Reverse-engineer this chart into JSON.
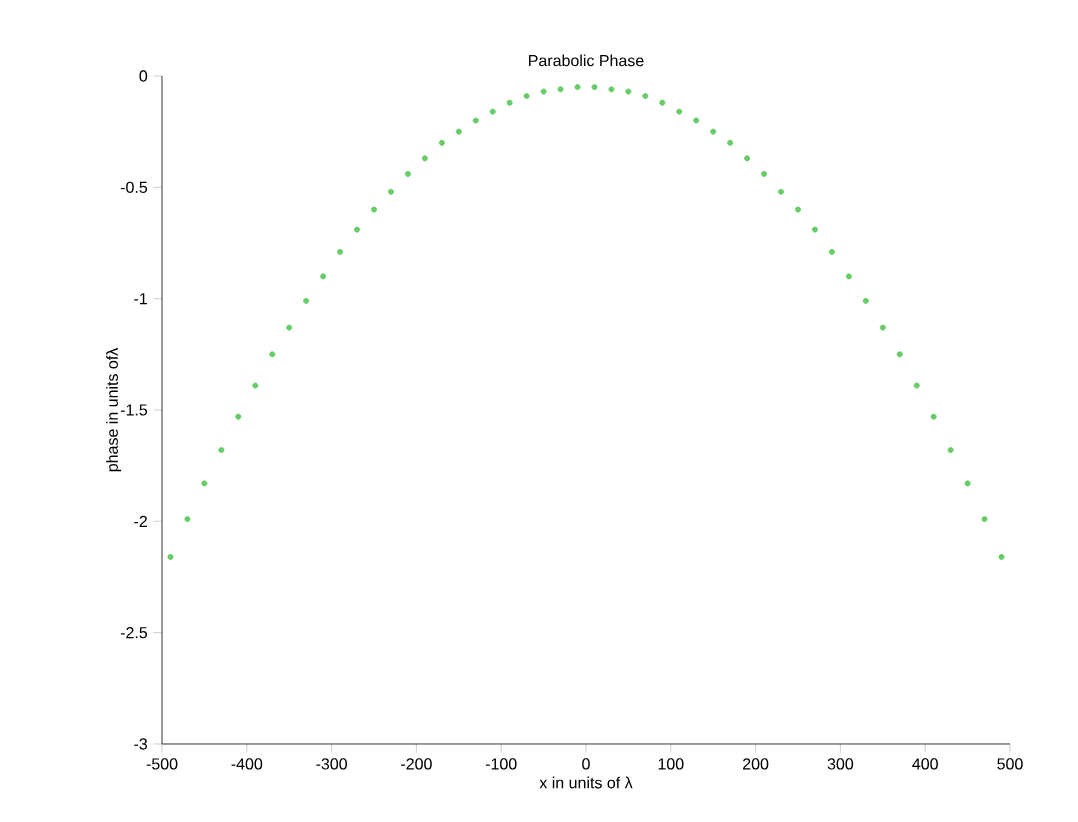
{
  "chart_data": {
    "type": "scatter",
    "title": "Parabolic Phase",
    "xlabel": "x in units of λ",
    "ylabel": "phase in units ofλ",
    "x": [
      -490,
      -470,
      -450,
      -430,
      -410,
      -390,
      -370,
      -350,
      -330,
      -310,
      -290,
      -270,
      -250,
      -230,
      -210,
      -190,
      -170,
      -150,
      -130,
      -110,
      -90,
      -70,
      -50,
      -30,
      -10,
      10,
      30,
      50,
      70,
      90,
      110,
      130,
      150,
      170,
      190,
      210,
      230,
      250,
      270,
      290,
      310,
      330,
      350,
      370,
      390,
      410,
      430,
      450,
      470,
      490
    ],
    "values": [
      -2.16,
      -1.99,
      -1.83,
      -1.68,
      -1.53,
      -1.39,
      -1.25,
      -1.13,
      -1.01,
      -0.9,
      -0.79,
      -0.69,
      -0.6,
      -0.52,
      -0.44,
      -0.37,
      -0.3,
      -0.25,
      -0.2,
      -0.16,
      -0.12,
      -0.09,
      -0.07,
      -0.06,
      -0.05,
      -0.05,
      -0.06,
      -0.07,
      -0.09,
      -0.12,
      -0.16,
      -0.2,
      -0.25,
      -0.3,
      -0.37,
      -0.44,
      -0.52,
      -0.6,
      -0.69,
      -0.79,
      -0.9,
      -1.01,
      -1.13,
      -1.25,
      -1.39,
      -1.53,
      -1.68,
      -1.83,
      -1.99,
      -2.16
    ],
    "color": "#66cc66",
    "marker": "circle",
    "xlim": [
      -500,
      500
    ],
    "ylim": [
      -3,
      0
    ],
    "xticks": [
      -500,
      -400,
      -300,
      -200,
      -100,
      0,
      100,
      200,
      300,
      400,
      500
    ],
    "yticks": [
      -3,
      -2.5,
      -2,
      -1.5,
      -1,
      -0.5,
      0
    ]
  }
}
